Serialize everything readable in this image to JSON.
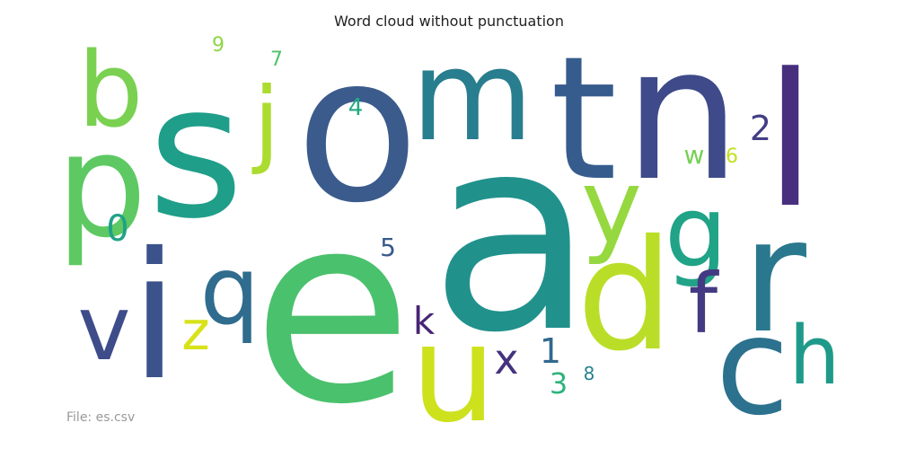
{
  "title": "Word cloud without punctuation",
  "footer": "File: es.csv",
  "words": [
    {
      "text": "a",
      "color": "#21918c"
    },
    {
      "text": "e",
      "color": "#4ac16d"
    },
    {
      "text": "o",
      "color": "#3b5b8c"
    },
    {
      "text": "n",
      "color": "#3e4a89"
    },
    {
      "text": "s",
      "color": "#1f9e89"
    },
    {
      "text": "i",
      "color": "#3b528b"
    },
    {
      "text": "t",
      "color": "#365c8d"
    },
    {
      "text": "l",
      "color": "#472f7d"
    },
    {
      "text": "r",
      "color": "#2a788e"
    },
    {
      "text": "m",
      "color": "#287d8e"
    },
    {
      "text": "d",
      "color": "#bade28"
    },
    {
      "text": "u",
      "color": "#cde11d"
    },
    {
      "text": "c",
      "color": "#2c728e"
    },
    {
      "text": "p",
      "color": "#5ec962"
    },
    {
      "text": "b",
      "color": "#7ad151"
    },
    {
      "text": "y",
      "color": "#95d840"
    },
    {
      "text": "g",
      "color": "#20a386"
    },
    {
      "text": "v",
      "color": "#3e4c8a"
    },
    {
      "text": "q",
      "color": "#2f6c8e"
    },
    {
      "text": "j",
      "color": "#addc30"
    },
    {
      "text": "h",
      "color": "#1f9a8a"
    },
    {
      "text": "f",
      "color": "#443a83"
    },
    {
      "text": "z",
      "color": "#d8e219"
    },
    {
      "text": "k",
      "color": "#482475"
    },
    {
      "text": "x",
      "color": "#46327e"
    },
    {
      "text": "2",
      "color": "#433e85"
    },
    {
      "text": "0",
      "color": "#1fa287"
    },
    {
      "text": "1",
      "color": "#31688e"
    },
    {
      "text": "3",
      "color": "#2eb37c"
    },
    {
      "text": "5",
      "color": "#38598c"
    },
    {
      "text": "4",
      "color": "#23a983"
    },
    {
      "text": "w",
      "color": "#75d054"
    },
    {
      "text": "6",
      "color": "#c2df23"
    },
    {
      "text": "7",
      "color": "#4fc369"
    },
    {
      "text": "9",
      "color": "#8ed645"
    },
    {
      "text": "8",
      "color": "#26828e"
    }
  ]
}
